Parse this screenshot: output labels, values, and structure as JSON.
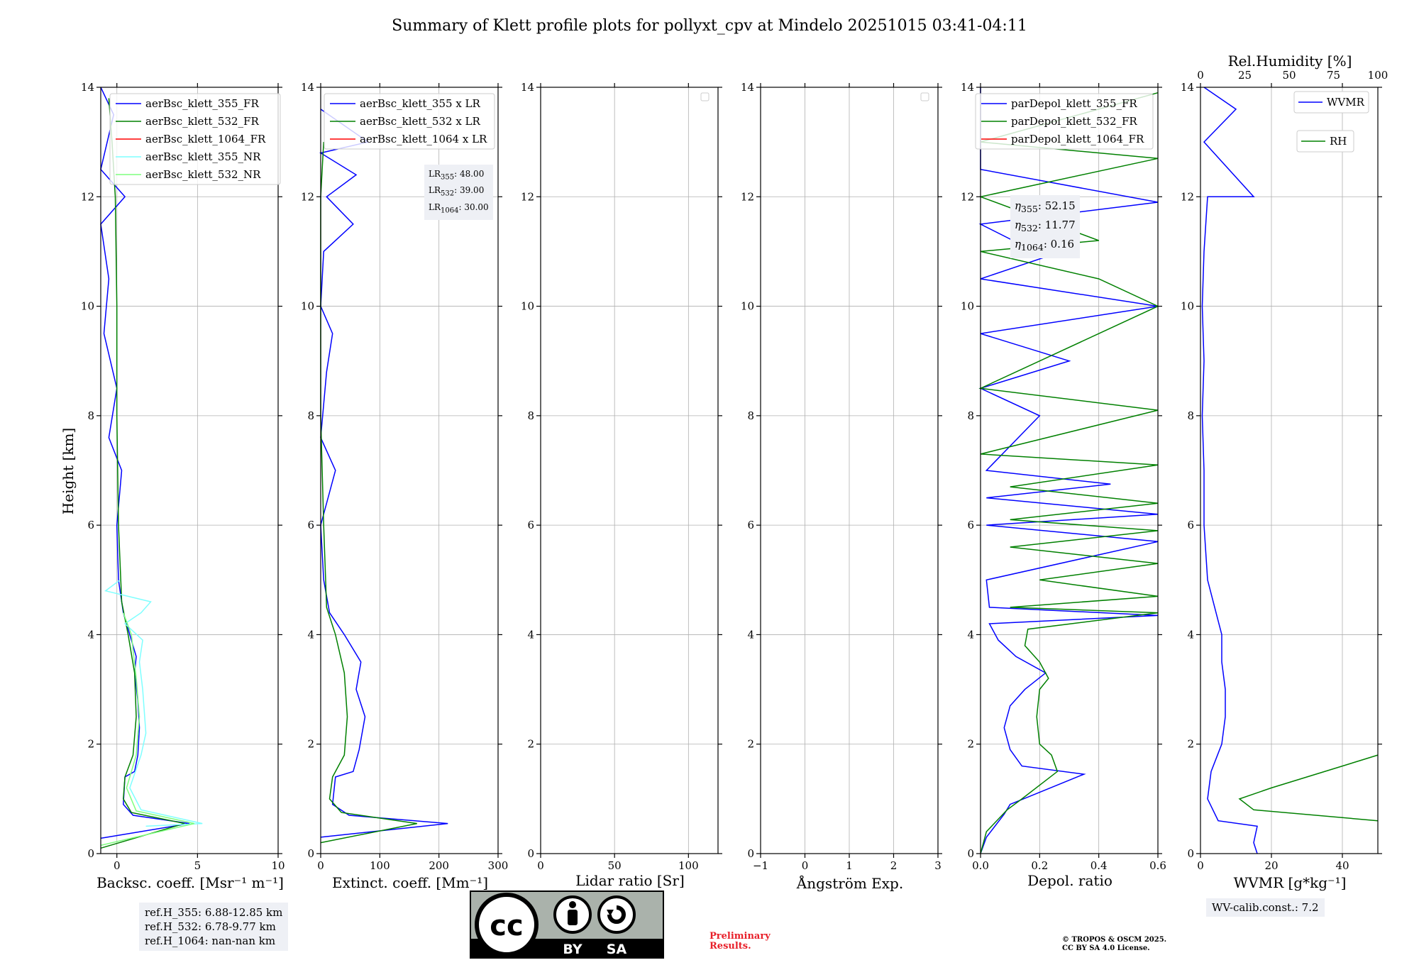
{
  "title": "Summary of Klett profile plots for pollyxt_cpv at Mindelo 20251015 03:41-04:11",
  "y_axis": {
    "label": "Height [km]",
    "range": [
      0,
      14
    ],
    "ticks": [
      "0",
      "2",
      "4",
      "6",
      "8",
      "10",
      "12",
      "14"
    ]
  },
  "panels": {
    "backscatter": {
      "xlabel": "Backsc. coeff. [Msr⁻¹ m⁻¹]",
      "xlim": [
        -1,
        10
      ],
      "ticks": [
        "0",
        "5",
        "10"
      ],
      "legend": [
        "aerBsc_klett_355_FR",
        "aerBsc_klett_532_FR",
        "aerBsc_klett_1064_FR",
        "aerBsc_klett_355_NR",
        "aerBsc_klett_532_NR"
      ]
    },
    "extinction": {
      "xlabel": "Extinct. coeff. [Mm⁻¹]",
      "xlim": [
        0,
        300
      ],
      "ticks": [
        "0",
        "100",
        "200",
        "300"
      ],
      "legend": [
        "aerBsc_klett_355 x LR",
        "aerBsc_klett_532 x LR",
        "aerBsc_klett_1064 x LR"
      ],
      "lidar_ratios": [
        {
          "sub": "355",
          "val": "48.00"
        },
        {
          "sub": "532",
          "val": "39.00"
        },
        {
          "sub": "1064",
          "val": "30.00"
        }
      ]
    },
    "lidar_ratio": {
      "xlabel": "Lidar ratio [Sr]",
      "xlim": [
        0,
        120
      ],
      "ticks": [
        "0",
        "50",
        "100"
      ]
    },
    "angstrom": {
      "xlabel": "Ångström Exp.",
      "xlim": [
        -1,
        3
      ],
      "ticks": [
        "−1",
        "0",
        "1",
        "2",
        "3"
      ]
    },
    "depol": {
      "xlabel": "Depol. ratio",
      "xlim": [
        0,
        0.6
      ],
      "ticks": [
        "0.0",
        "0.2",
        "0.4",
        "0.6"
      ],
      "legend": [
        "parDepol_klett_355_FR",
        "parDepol_klett_532_FR",
        "parDepol_klett_1064_FR"
      ],
      "eta": [
        {
          "sub": "355",
          "val": "52.15"
        },
        {
          "sub": "532",
          "val": "11.77"
        },
        {
          "sub": "1064",
          "val": "0.16"
        }
      ]
    },
    "wvmr": {
      "xlabel": "WVMR [g*kg⁻¹]",
      "xlim": [
        0,
        50
      ],
      "ticks": [
        "0",
        "20",
        "40"
      ],
      "top_label": "Rel.Humidity [%]",
      "top_ticks": [
        "0",
        "25",
        "50",
        "75",
        "100"
      ],
      "legend": [
        "WVMR",
        "RH"
      ]
    }
  },
  "colors": {
    "c355": "#0000ff",
    "c532": "#008000",
    "c1064": "#ff0000",
    "c355nr": "#7fffff",
    "c532nr": "#7fff7f"
  },
  "footer": {
    "ref": [
      "ref.H_355: 6.88-12.85 km",
      "ref.H_532: 6.78-9.77 km",
      "ref.H_1064: nan-nan km"
    ],
    "wv_calib": "WV-calib.const.: 7.2",
    "preliminary": [
      "Preliminary",
      "Results."
    ],
    "copyright": [
      "© TROPOS & OSCM 2025.",
      "CC BY SA 4.0 License."
    ],
    "cc_badge": {
      "main": "cc",
      "by": "BY",
      "sa": "SA"
    }
  },
  "chart_data": [
    {
      "type": "line",
      "title": "",
      "xlabel": "Backsc. coeff. [Msr⁻¹ m⁻¹]",
      "ylabel": "Height [km]",
      "xlim": [
        -1,
        10
      ],
      "ylim": [
        0,
        14
      ],
      "series": [
        {
          "name": "aerBsc_klett_355_FR",
          "color": "#0000ff",
          "points": [
            [
              -1,
              0.28
            ],
            [
              4.5,
              0.55
            ],
            [
              1.0,
              0.7
            ],
            [
              0.4,
              0.9
            ],
            [
              0.5,
              1.4
            ],
            [
              1.1,
              1.5
            ],
            [
              1.3,
              1.8
            ],
            [
              1.4,
              2.3
            ],
            [
              1.3,
              2.8
            ],
            [
              1.1,
              3.3
            ],
            [
              1.2,
              3.6
            ],
            [
              0.8,
              4.0
            ],
            [
              0.4,
              4.4
            ],
            [
              0.1,
              5.0
            ],
            [
              0.0,
              6.0
            ],
            [
              0.3,
              7.0
            ],
            [
              -0.5,
              7.6
            ],
            [
              0.0,
              8.5
            ],
            [
              -0.8,
              9.5
            ],
            [
              -0.5,
              10.5
            ],
            [
              -1.0,
              11.5
            ],
            [
              0.5,
              12.0
            ],
            [
              -1.0,
              12.5
            ],
            [
              -0.2,
              13.5
            ],
            [
              -1.0,
              14.0
            ]
          ]
        },
        {
          "name": "aerBsc_klett_532_FR",
          "color": "#008000",
          "points": [
            [
              -1,
              0.1
            ],
            [
              4.2,
              0.55
            ],
            [
              0.9,
              0.75
            ],
            [
              0.4,
              1.0
            ],
            [
              0.5,
              1.4
            ],
            [
              1.0,
              1.8
            ],
            [
              1.2,
              2.5
            ],
            [
              1.1,
              3.3
            ],
            [
              0.7,
              4.0
            ],
            [
              0.3,
              4.6
            ],
            [
              0.1,
              6.0
            ],
            [
              0.0,
              8.0
            ],
            [
              0.0,
              10.0
            ],
            [
              -0.1,
              12.0
            ],
            [
              -0.3,
              13.0
            ],
            [
              -0.5,
              13.8
            ]
          ]
        },
        {
          "name": "aerBsc_klett_355_NR",
          "color": "#7fffff",
          "points": [
            [
              1.8,
              0.5
            ],
            [
              5.3,
              0.55
            ],
            [
              1.5,
              0.8
            ],
            [
              0.8,
              1.2
            ],
            [
              1.5,
              1.8
            ],
            [
              1.8,
              2.2
            ],
            [
              1.6,
              3.0
            ],
            [
              1.4,
              3.5
            ],
            [
              1.6,
              3.9
            ],
            [
              0.5,
              4.2
            ],
            [
              1.5,
              4.4
            ],
            [
              2.1,
              4.6
            ],
            [
              -0.7,
              4.8
            ],
            [
              0.2,
              5.0
            ]
          ]
        },
        {
          "name": "aerBsc_klett_532_NR",
          "color": "#7fff7f",
          "points": [
            [
              -1,
              0.15
            ],
            [
              4.8,
              0.55
            ],
            [
              1.2,
              0.78
            ],
            [
              0.6,
              1.2
            ],
            [
              1.2,
              1.8
            ],
            [
              1.4,
              2.5
            ],
            [
              1.2,
              3.2
            ],
            [
              0.9,
              4.0
            ],
            [
              0.4,
              4.4
            ]
          ]
        }
      ]
    },
    {
      "type": "line",
      "title": "",
      "xlabel": "Extinct. coeff. [Mm⁻¹]",
      "ylabel": "Height [km]",
      "xlim": [
        0,
        300
      ],
      "ylim": [
        0,
        14
      ],
      "series": [
        {
          "name": "aerBsc_klett_355 x LR",
          "color": "#0000ff",
          "points": [
            [
              0,
              0.3
            ],
            [
              215,
              0.55
            ],
            [
              48,
              0.7
            ],
            [
              20,
              0.9
            ],
            [
              25,
              1.4
            ],
            [
              55,
              1.5
            ],
            [
              65,
              1.9
            ],
            [
              75,
              2.5
            ],
            [
              60,
              3.0
            ],
            [
              68,
              3.5
            ],
            [
              40,
              4.0
            ],
            [
              15,
              4.4
            ],
            [
              5,
              5.0
            ],
            [
              0,
              6.0
            ],
            [
              25,
              7.0
            ],
            [
              0,
              7.6
            ],
            [
              10,
              8.8
            ],
            [
              20,
              9.5
            ],
            [
              0,
              10.0
            ],
            [
              5,
              11.0
            ],
            [
              55,
              11.5
            ],
            [
              10,
              12.0
            ],
            [
              60,
              12.4
            ],
            [
              0,
              12.8
            ],
            [
              80,
              13.0
            ],
            [
              0,
              13.6
            ]
          ]
        },
        {
          "name": "aerBsc_klett_532 x LR",
          "color": "#008000",
          "points": [
            [
              0,
              0.2
            ],
            [
              163,
              0.55
            ],
            [
              35,
              0.75
            ],
            [
              15,
              1.0
            ],
            [
              20,
              1.4
            ],
            [
              40,
              1.8
            ],
            [
              45,
              2.5
            ],
            [
              40,
              3.3
            ],
            [
              25,
              4.0
            ],
            [
              10,
              4.5
            ],
            [
              5,
              6.0
            ],
            [
              0,
              8.0
            ],
            [
              0,
              10.0
            ],
            [
              0,
              12.0
            ],
            [
              5,
              13.0
            ]
          ]
        }
      ]
    },
    {
      "type": "line",
      "title": "",
      "xlabel": "Lidar ratio [Sr]",
      "ylabel": "Height [km]",
      "xlim": [
        0,
        120
      ],
      "ylim": [
        0,
        14
      ],
      "series": []
    },
    {
      "type": "line",
      "title": "",
      "xlabel": "Ångström Exp.",
      "ylabel": "Height [km]",
      "xlim": [
        -1,
        3
      ],
      "ylim": [
        0,
        14
      ],
      "series": []
    },
    {
      "type": "line",
      "title": "",
      "xlabel": "Depol. ratio",
      "ylabel": "Height [km]",
      "xlim": [
        0,
        0.6
      ],
      "ylim": [
        0,
        14
      ],
      "series": [
        {
          "name": "parDepol_klett_355_FR",
          "color": "#0000ff",
          "points": [
            [
              0.0,
              0.0
            ],
            [
              0.02,
              0.3
            ],
            [
              0.08,
              0.72
            ],
            [
              0.1,
              0.9
            ],
            [
              0.35,
              1.45
            ],
            [
              0.14,
              1.6
            ],
            [
              0.1,
              1.9
            ],
            [
              0.08,
              2.3
            ],
            [
              0.1,
              2.7
            ],
            [
              0.15,
              3.0
            ],
            [
              0.22,
              3.3
            ],
            [
              0.12,
              3.6
            ],
            [
              0.06,
              3.9
            ],
            [
              0.03,
              4.2
            ],
            [
              0.6,
              4.35
            ],
            [
              0.03,
              4.5
            ],
            [
              0.02,
              5.0
            ],
            [
              0.6,
              5.7
            ],
            [
              0.02,
              6.0
            ],
            [
              0.6,
              6.2
            ],
            [
              0.02,
              6.5
            ],
            [
              0.44,
              6.75
            ],
            [
              0.02,
              7.0
            ],
            [
              0.2,
              8.0
            ],
            [
              0.0,
              8.5
            ],
            [
              0.3,
              9.0
            ],
            [
              0.0,
              9.5
            ],
            [
              0.6,
              10.0
            ],
            [
              0.0,
              10.5
            ],
            [
              0.22,
              10.9
            ],
            [
              0.0,
              11.5
            ],
            [
              0.6,
              11.9
            ],
            [
              0.0,
              12.5
            ],
            [
              0.0,
              14.0
            ]
          ]
        },
        {
          "name": "parDepol_klett_532_FR",
          "color": "#008000",
          "points": [
            [
              0.0,
              0.0
            ],
            [
              0.02,
              0.4
            ],
            [
              0.09,
              0.8
            ],
            [
              0.14,
              1.0
            ],
            [
              0.26,
              1.5
            ],
            [
              0.24,
              1.8
            ],
            [
              0.2,
              2.0
            ],
            [
              0.19,
              2.5
            ],
            [
              0.2,
              3.0
            ],
            [
              0.23,
              3.2
            ],
            [
              0.2,
              3.5
            ],
            [
              0.15,
              3.8
            ],
            [
              0.16,
              4.1
            ],
            [
              0.6,
              4.4
            ],
            [
              0.1,
              4.5
            ],
            [
              0.6,
              4.7
            ],
            [
              0.2,
              5.0
            ],
            [
              0.6,
              5.3
            ],
            [
              0.1,
              5.6
            ],
            [
              0.6,
              5.9
            ],
            [
              0.1,
              6.1
            ],
            [
              0.6,
              6.4
            ],
            [
              0.1,
              6.7
            ],
            [
              0.6,
              7.1
            ],
            [
              0.0,
              7.3
            ],
            [
              0.6,
              8.1
            ],
            [
              0.0,
              8.5
            ],
            [
              0.6,
              10.0
            ],
            [
              0.4,
              10.5
            ],
            [
              0.0,
              11.0
            ],
            [
              0.4,
              11.2
            ],
            [
              0.0,
              12.0
            ],
            [
              0.6,
              12.7
            ],
            [
              0.0,
              13.0
            ],
            [
              0.6,
              13.9
            ]
          ]
        }
      ]
    },
    {
      "type": "line",
      "title": "",
      "xlabel": "WVMR [g*kg⁻¹]",
      "ylabel": "Height [km]",
      "xlim": [
        0,
        50
      ],
      "ylim": [
        0,
        14
      ],
      "x2label": "Rel.Humidity [%]",
      "x2lim": [
        0,
        100
      ],
      "series": [
        {
          "name": "WVMR",
          "color": "#0000ff",
          "points": [
            [
              16,
              0.0
            ],
            [
              15,
              0.2
            ],
            [
              16,
              0.5
            ],
            [
              5,
              0.6
            ],
            [
              2,
              1.0
            ],
            [
              3,
              1.5
            ],
            [
              6,
              2.0
            ],
            [
              7,
              2.5
            ],
            [
              7,
              3.0
            ],
            [
              6,
              3.5
            ],
            [
              6,
              4.0
            ],
            [
              4,
              4.5
            ],
            [
              2,
              5.0
            ],
            [
              1,
              6.0
            ],
            [
              1,
              7.0
            ],
            [
              0.5,
              8.0
            ],
            [
              1,
              9.0
            ],
            [
              0.5,
              10.0
            ],
            [
              1,
              11.0
            ],
            [
              2,
              12.0
            ],
            [
              15,
              12.0
            ],
            [
              1,
              13.0
            ],
            [
              10,
              13.6
            ],
            [
              1,
              14.0
            ]
          ]
        },
        {
          "name": "RH",
          "color": "#008000",
          "points": [
            [
              100,
              0.6
            ],
            [
              30,
              0.8
            ],
            [
              22,
              1.0
            ],
            [
              40,
              1.2
            ],
            [
              60,
              1.4
            ],
            [
              90,
              1.7
            ],
            [
              100,
              1.8
            ]
          ]
        }
      ]
    }
  ]
}
